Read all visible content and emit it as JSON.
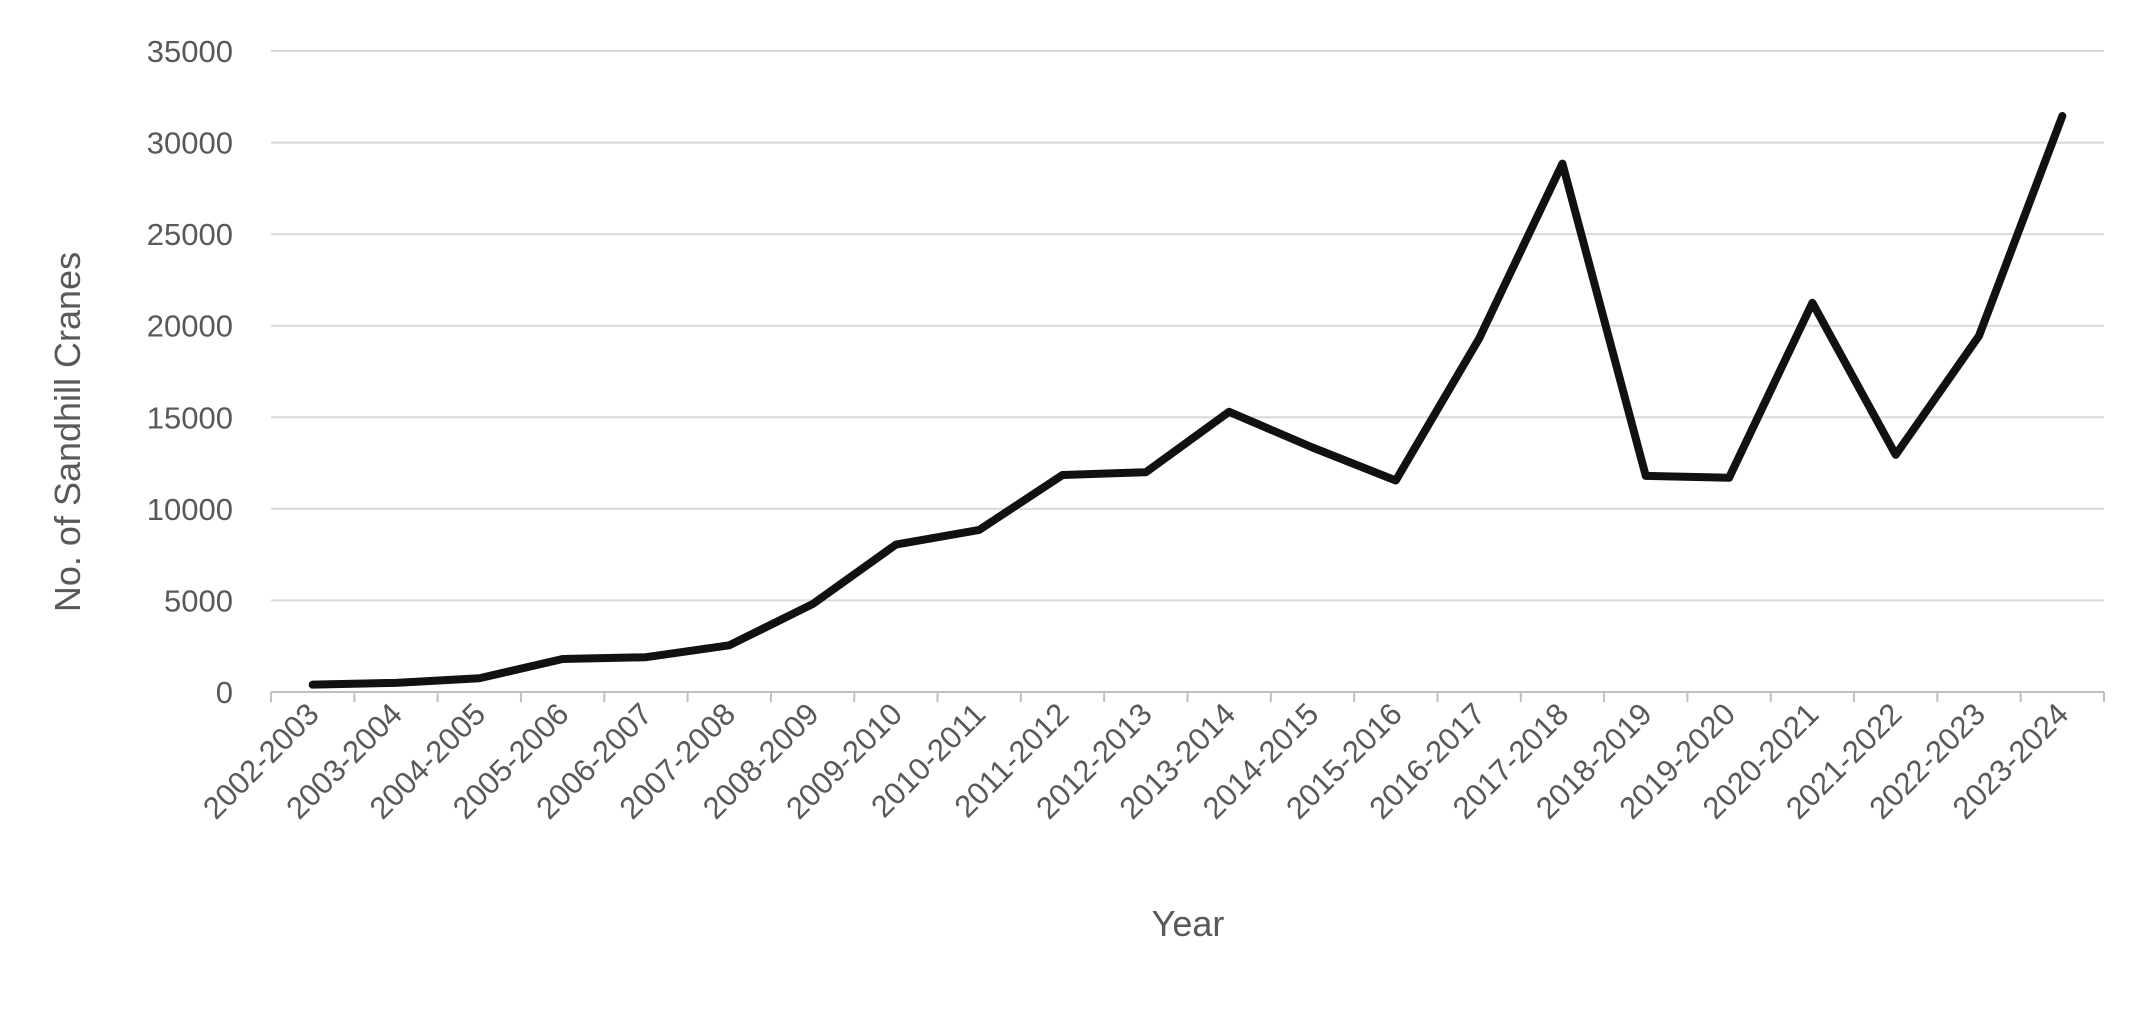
{
  "chart_data": {
    "type": "line",
    "title": "",
    "xlabel": "Year",
    "ylabel": "No. of Sandhill Cranes",
    "ylim": [
      0,
      35000
    ],
    "yticks": [
      0,
      5000,
      10000,
      15000,
      20000,
      25000,
      30000,
      35000
    ],
    "grid": true,
    "legend": "none",
    "line_color": "#111111",
    "grid_color": "#d9d9d9",
    "categories": [
      "2002-2003",
      "2003-2004",
      "2004-2005",
      "2005-2006",
      "2006-2007",
      "2007-2008",
      "2008-2009",
      "2009-2010",
      "2010-2011",
      "2011-2012",
      "2012-2013",
      "2013-2014",
      "2014-2015",
      "2015-2016",
      "2016-2017",
      "2017-2018",
      "2018-2019",
      "2019-2020",
      "2020-2021",
      "2021-2022",
      "2022-2023",
      "2023-2024"
    ],
    "series": [
      {
        "values": [
          400,
          500,
          750,
          1800,
          1900,
          2550,
          4800,
          8050,
          8850,
          11850,
          12000,
          15300,
          13350,
          11550,
          19300,
          28850,
          11800,
          11700,
          21250,
          12950,
          19450,
          31450
        ]
      }
    ]
  }
}
